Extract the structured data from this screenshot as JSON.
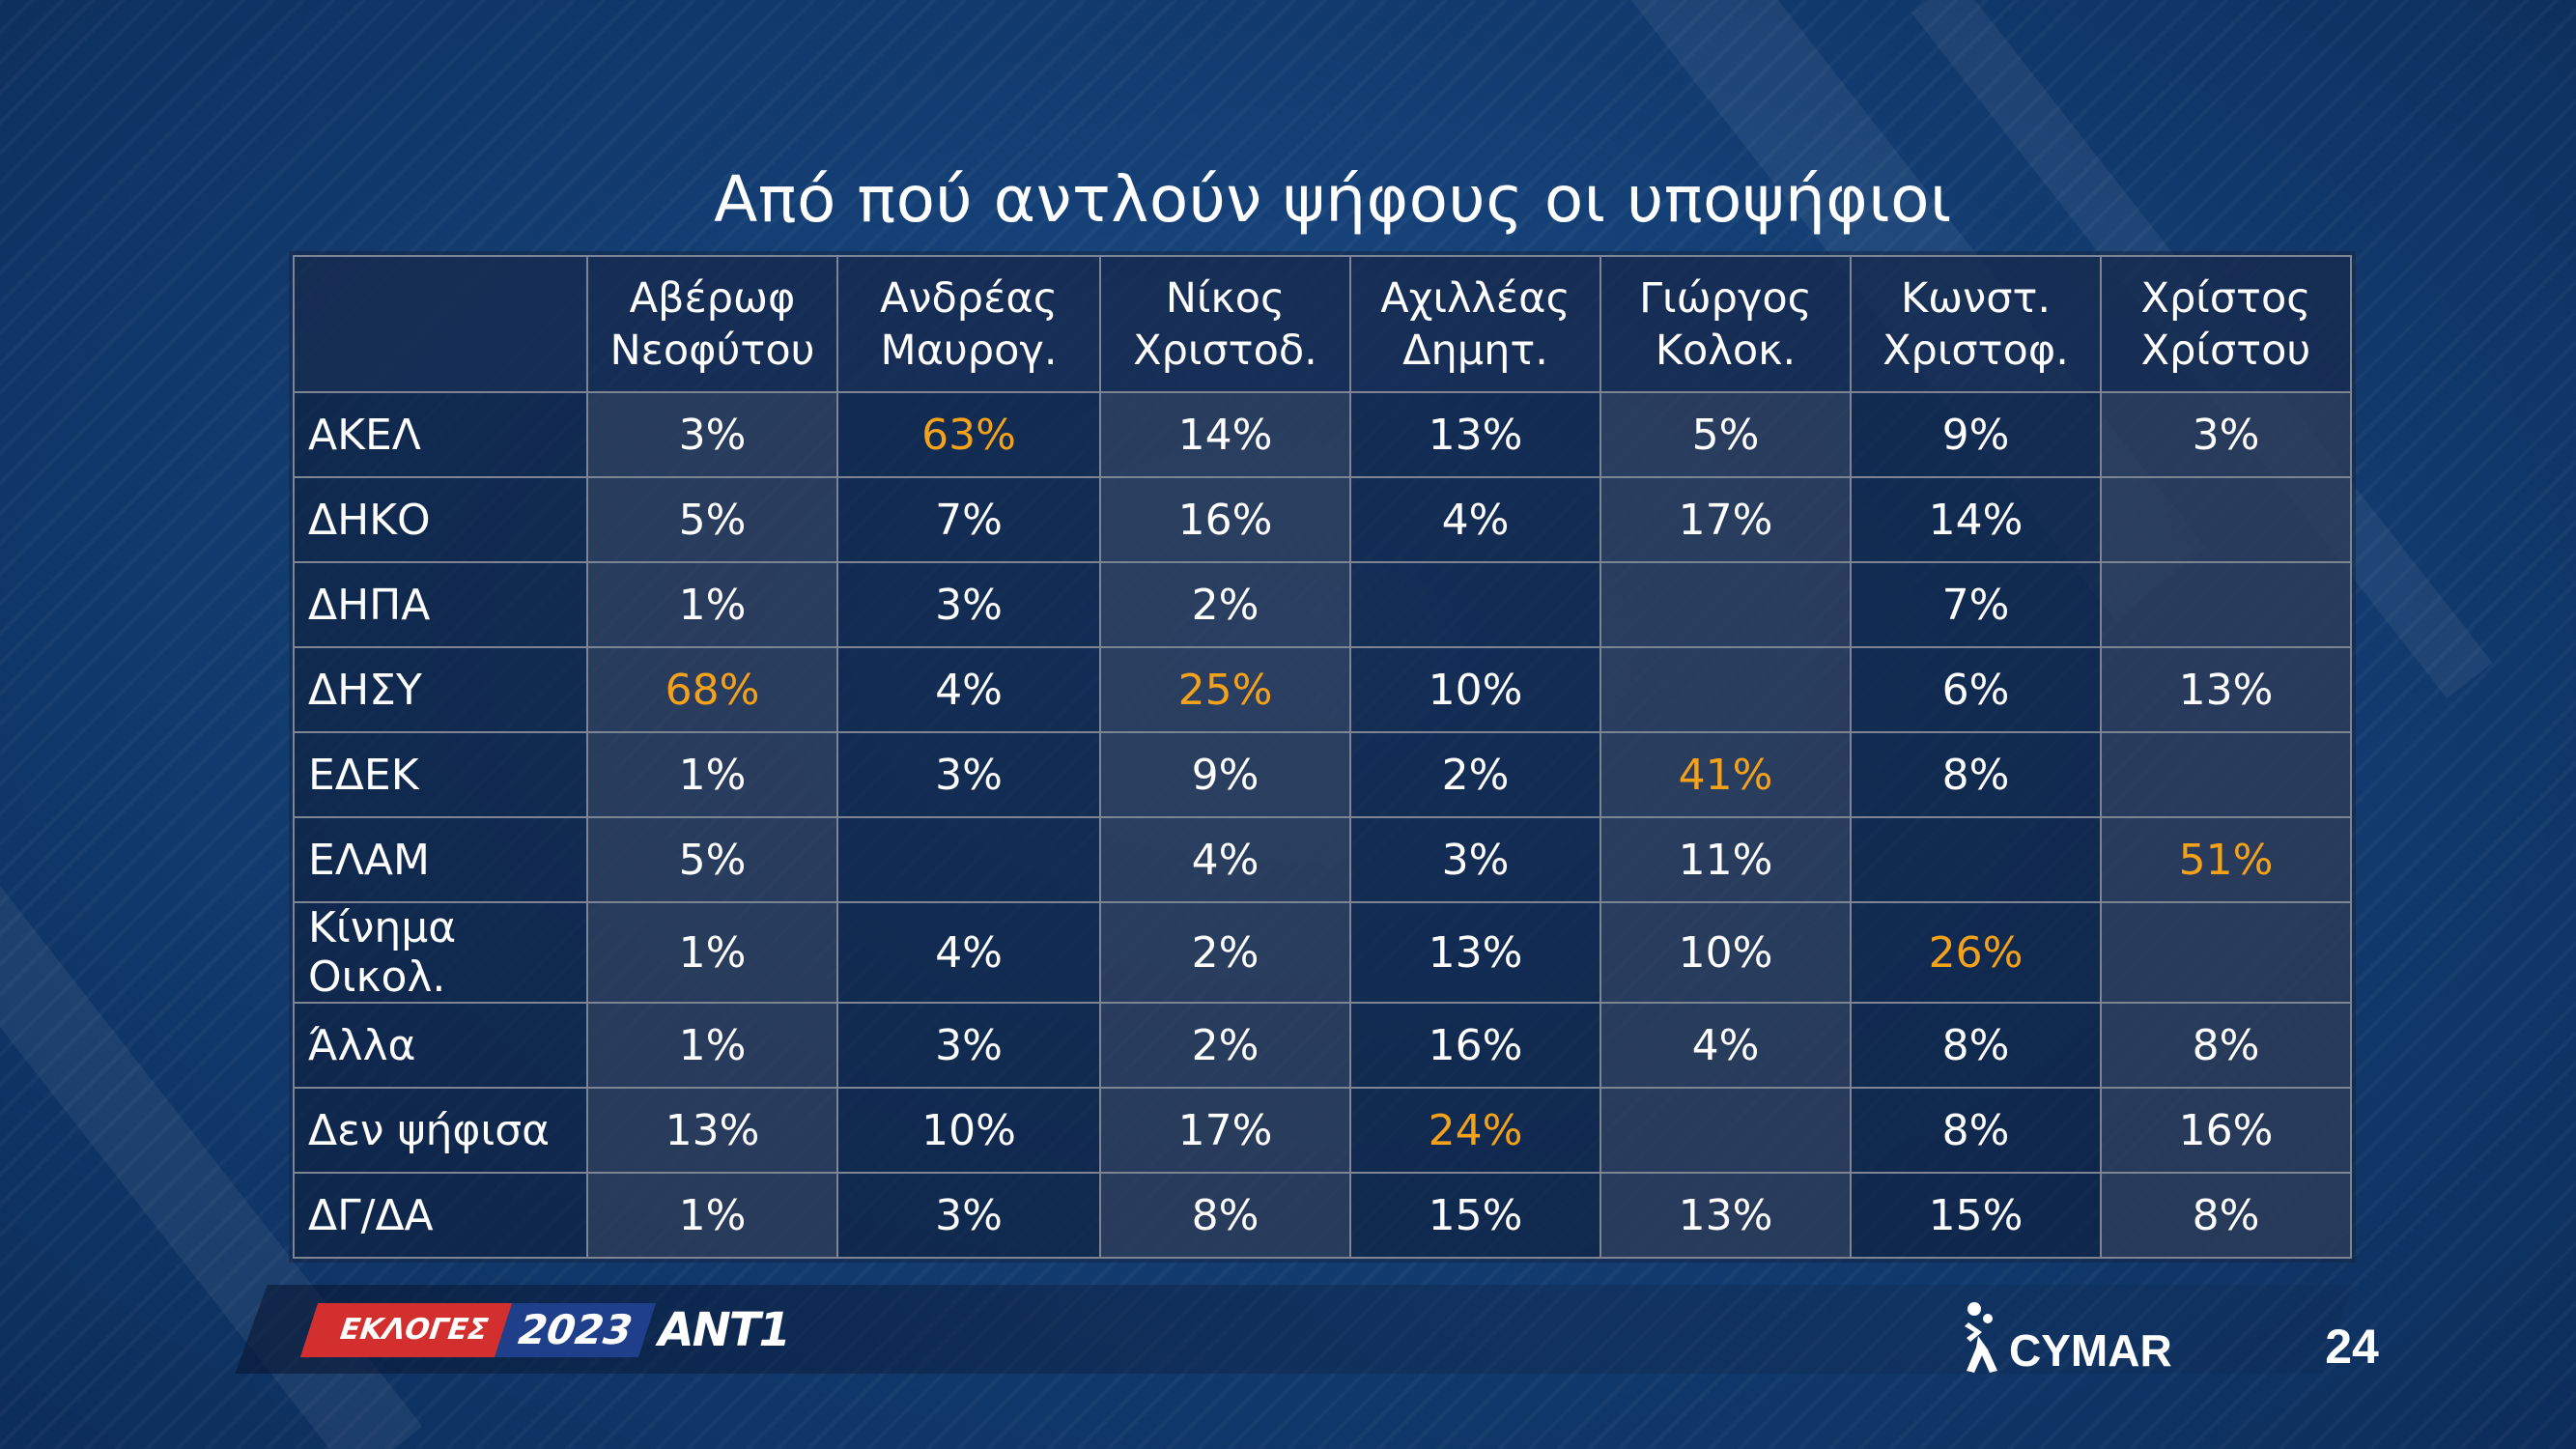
{
  "title": "Από πού αντλούν ψήφους οι υποψήφιοι",
  "chart_data": {
    "type": "table",
    "title": "Από πού αντλούν ψήφους οι υποψήφιοι",
    "columns": [
      [
        "Αβέρωφ",
        "Νεοφύτου"
      ],
      [
        "Ανδρέας",
        "Μαυρογ."
      ],
      [
        "Νίκος",
        "Χριστοδ."
      ],
      [
        "Αχιλλέας",
        "Δημητ."
      ],
      [
        "Γιώργος",
        "Κολοκ."
      ],
      [
        "Κωνστ.",
        "Χριστοφ."
      ],
      [
        "Χρίστος",
        "Χρίστου"
      ]
    ],
    "rows": [
      {
        "label": "ΑΚΕΛ",
        "values": [
          "3%",
          "63%",
          "14%",
          "13%",
          "5%",
          "9%",
          "3%"
        ],
        "highlight": [
          1
        ]
      },
      {
        "label": "ΔΗΚΟ",
        "values": [
          "5%",
          "7%",
          "16%",
          "4%",
          "17%",
          "14%",
          ""
        ],
        "highlight": []
      },
      {
        "label": "ΔΗΠΑ",
        "values": [
          "1%",
          "3%",
          "2%",
          "",
          "",
          "7%",
          ""
        ],
        "highlight": []
      },
      {
        "label": "ΔΗΣΥ",
        "values": [
          "68%",
          "4%",
          "25%",
          "10%",
          "",
          "6%",
          "13%"
        ],
        "highlight": [
          0,
          2
        ]
      },
      {
        "label": "ΕΔΕΚ",
        "values": [
          "1%",
          "3%",
          "9%",
          "2%",
          "41%",
          "8%",
          ""
        ],
        "highlight": [
          4
        ]
      },
      {
        "label": "ΕΛΑΜ",
        "values": [
          "5%",
          "",
          "4%",
          "3%",
          "11%",
          "",
          "51%"
        ],
        "highlight": [
          6
        ]
      },
      {
        "label": "Κίνημα Οικολ.",
        "values": [
          "1%",
          "4%",
          "2%",
          "13%",
          "10%",
          "26%",
          ""
        ],
        "highlight": [
          5
        ]
      },
      {
        "label": "Άλλα",
        "values": [
          "1%",
          "3%",
          "2%",
          "16%",
          "4%",
          "8%",
          "8%"
        ],
        "highlight": []
      },
      {
        "label": "Δεν ψήφισα",
        "values": [
          "13%",
          "10%",
          "17%",
          "24%",
          "",
          "8%",
          "16%"
        ],
        "highlight": [
          3
        ]
      },
      {
        "label": "ΔΓ/ΔΑ",
        "values": [
          "1%",
          "3%",
          "8%",
          "15%",
          "13%",
          "15%",
          "8%"
        ],
        "highlight": []
      }
    ]
  },
  "colors": {
    "highlight": "#f5a21b",
    "text": "#ffffff",
    "background": "#143f75",
    "grid": "#7d8595",
    "logo_red": "#d32f2f",
    "logo_blue": "#1f3f8a"
  },
  "footer": {
    "elections_label": "ΕΚΛΟΓΕΣ",
    "year": "2023",
    "channel": "ANT1",
    "pollster": "CYMAR",
    "page_number": "24"
  }
}
